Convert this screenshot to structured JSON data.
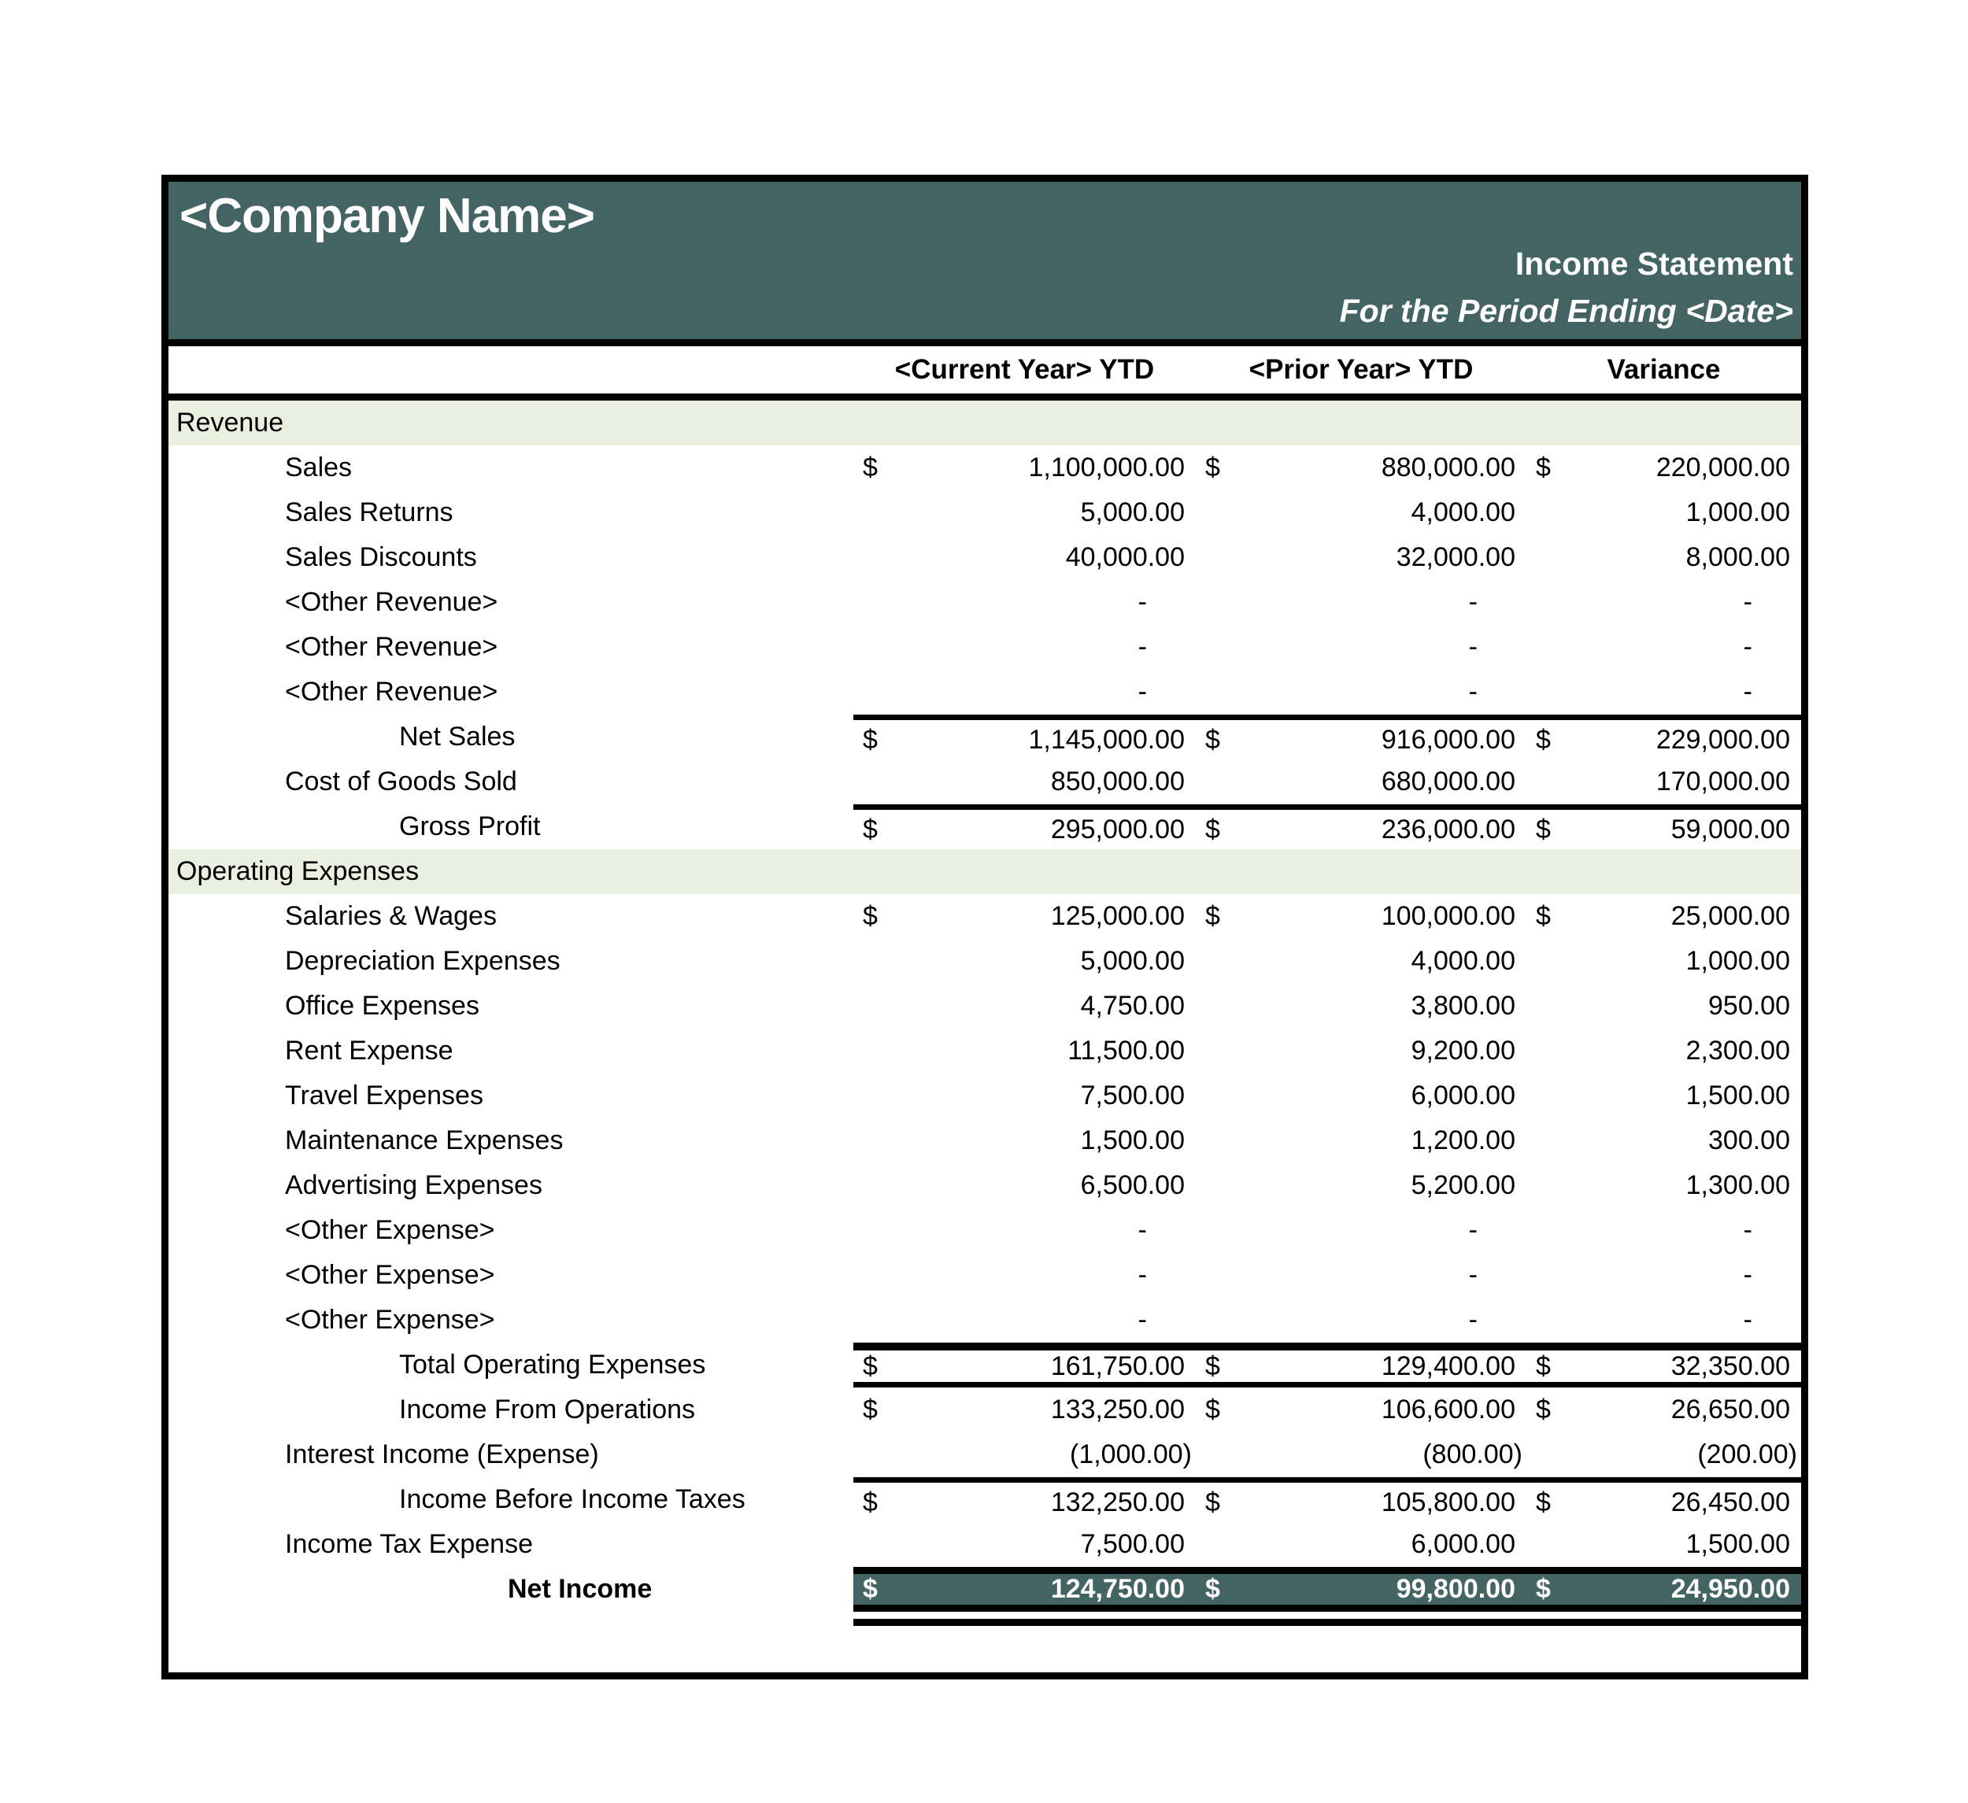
{
  "masthead": {
    "company_name": "<Company Name>",
    "title": "Income Statement",
    "period": "For the Period Ending <Date>"
  },
  "columns": {
    "current": "<Current Year> YTD",
    "prior": "<Prior Year> YTD",
    "variance": "Variance"
  },
  "colors": {
    "header_teal": "#436462",
    "section_band": "#ebefe0",
    "rule_black": "#000000",
    "text_on_teal": "#ffffff"
  },
  "rows": [
    {
      "kind": "section",
      "label": "Revenue"
    },
    {
      "kind": "item",
      "label": "Sales",
      "indent": 1,
      "dollar": true,
      "values": [
        "1,100,000.00",
        "880,000.00",
        "220,000.00"
      ]
    },
    {
      "kind": "item",
      "label": "Sales Returns",
      "indent": 1,
      "values": [
        "5,000.00",
        "4,000.00",
        "1,000.00"
      ]
    },
    {
      "kind": "item",
      "label": "Sales Discounts",
      "indent": 1,
      "values": [
        "40,000.00",
        "32,000.00",
        "8,000.00"
      ]
    },
    {
      "kind": "item",
      "label": "<Other Revenue>",
      "indent": 1,
      "placeholder": true,
      "dash": true,
      "values": [
        "-",
        "-",
        "-"
      ]
    },
    {
      "kind": "item",
      "label": "<Other Revenue>",
      "indent": 1,
      "placeholder": true,
      "dash": true,
      "values": [
        "-",
        "-",
        "-"
      ]
    },
    {
      "kind": "item",
      "label": "<Other Revenue>",
      "indent": 1,
      "placeholder": true,
      "dash": true,
      "values": [
        "-",
        "-",
        "-"
      ]
    },
    {
      "kind": "total",
      "label": "Net Sales",
      "indent": 2,
      "dollar": true,
      "rule_top": "single",
      "values": [
        "1,145,000.00",
        "916,000.00",
        "229,000.00"
      ]
    },
    {
      "kind": "item",
      "label": "Cost of Goods Sold",
      "indent": 1,
      "values": [
        "850,000.00",
        "680,000.00",
        "170,000.00"
      ]
    },
    {
      "kind": "total",
      "label": "Gross Profit",
      "indent": 2,
      "dollar": true,
      "rule_top": "single",
      "values": [
        "295,000.00",
        "236,000.00",
        "59,000.00"
      ]
    },
    {
      "kind": "section",
      "label": "Operating Expenses"
    },
    {
      "kind": "item",
      "label": "Salaries & Wages",
      "indent": 1,
      "dollar": true,
      "values": [
        "125,000.00",
        "100,000.00",
        "25,000.00"
      ]
    },
    {
      "kind": "item",
      "label": "Depreciation Expenses",
      "indent": 1,
      "values": [
        "5,000.00",
        "4,000.00",
        "1,000.00"
      ]
    },
    {
      "kind": "item",
      "label": "Office Expenses",
      "indent": 1,
      "values": [
        "4,750.00",
        "3,800.00",
        "950.00"
      ]
    },
    {
      "kind": "item",
      "label": "Rent Expense",
      "indent": 1,
      "values": [
        "11,500.00",
        "9,200.00",
        "2,300.00"
      ]
    },
    {
      "kind": "item",
      "label": "Travel Expenses",
      "indent": 1,
      "values": [
        "7,500.00",
        "6,000.00",
        "1,500.00"
      ]
    },
    {
      "kind": "item",
      "label": "Maintenance Expenses",
      "indent": 1,
      "values": [
        "1,500.00",
        "1,200.00",
        "300.00"
      ]
    },
    {
      "kind": "item",
      "label": "Advertising Expenses",
      "indent": 1,
      "values": [
        "6,500.00",
        "5,200.00",
        "1,300.00"
      ]
    },
    {
      "kind": "item",
      "label": "<Other Expense>",
      "indent": 1,
      "placeholder": true,
      "dash": true,
      "values": [
        "-",
        "-",
        "-"
      ]
    },
    {
      "kind": "item",
      "label": "<Other Expense>",
      "indent": 1,
      "placeholder": true,
      "dash": true,
      "values": [
        "-",
        "-",
        "-"
      ]
    },
    {
      "kind": "item",
      "label": "<Other Expense>",
      "indent": 1,
      "placeholder": true,
      "dash": true,
      "values": [
        "-",
        "-",
        "-"
      ]
    },
    {
      "kind": "total",
      "label": "Total Operating Expenses",
      "indent": 2,
      "dollar": true,
      "rule_top": "thick",
      "rule_bottom": "single",
      "values": [
        "161,750.00",
        "129,400.00",
        "32,350.00"
      ]
    },
    {
      "kind": "total",
      "label": "Income From Operations",
      "indent": 2,
      "dollar": true,
      "values": [
        "133,250.00",
        "106,600.00",
        "26,650.00"
      ]
    },
    {
      "kind": "item",
      "label": "Interest Income (Expense)",
      "indent": 1,
      "paren": true,
      "values": [
        "(1,000.00)",
        "(800.00)",
        "(200.00)"
      ]
    },
    {
      "kind": "total",
      "label": "Income Before Income Taxes",
      "indent": 2,
      "dollar": true,
      "rule_top": "single",
      "values": [
        "132,250.00",
        "105,800.00",
        "26,450.00"
      ]
    },
    {
      "kind": "item",
      "label": "Income Tax Expense",
      "indent": 1,
      "values": [
        "7,500.00",
        "6,000.00",
        "1,500.00"
      ]
    },
    {
      "kind": "net",
      "label": "Net Income",
      "indent": 3,
      "dollar": true,
      "values": [
        "124,750.00",
        "99,800.00",
        "24,950.00"
      ]
    },
    {
      "kind": "underline"
    }
  ]
}
